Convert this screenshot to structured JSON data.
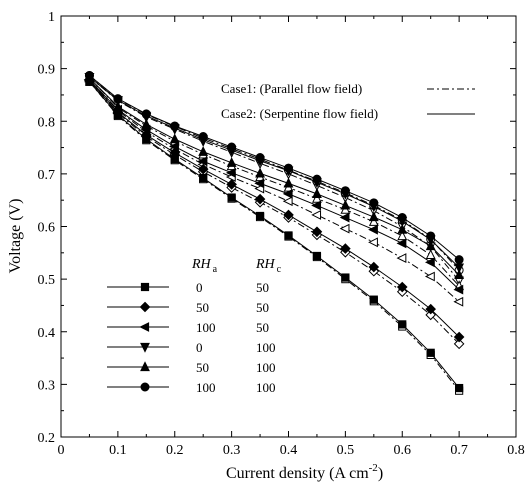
{
  "chart_data": {
    "type": "line",
    "title": "",
    "xlabel": "Current density (A cm",
    "xlabel_sup": "-2",
    "xlabel_close": ")",
    "ylabel": "Voltage (V)",
    "xlim": [
      0,
      0.8
    ],
    "ylim": [
      0.2,
      1.0
    ],
    "xticks": [
      "0",
      "0.1",
      "0.2",
      "0.3",
      "0.4",
      "0.5",
      "0.6",
      "0.7",
      "0.8"
    ],
    "yticks": [
      "0.2",
      "0.3",
      "0.4",
      "0.5",
      "0.6",
      "0.7",
      "0.8",
      "0.9",
      "1"
    ],
    "grid": false,
    "case_legend": [
      {
        "label": "Case1: (Parallel flow field)",
        "style": "dashdot"
      },
      {
        "label": "Case2: (Serpentine flow field)",
        "style": "solid"
      }
    ],
    "rh_header": {
      "a": "RH",
      "a_sub": "a",
      "c": "RH",
      "c_sub": "c"
    },
    "rh_legend": [
      {
        "marker": "square",
        "rha": "0",
        "rhc": "50"
      },
      {
        "marker": "diamond",
        "rha": "50",
        "rhc": "50"
      },
      {
        "marker": "tri-left",
        "rha": "100",
        "rhc": "50"
      },
      {
        "marker": "tri-down",
        "rha": "0",
        "rhc": "100"
      },
      {
        "marker": "tri-up",
        "rha": "50",
        "rhc": "100"
      },
      {
        "marker": "circle",
        "rha": "100",
        "rhc": "100"
      }
    ],
    "x": [
      0.05,
      0.1,
      0.15,
      0.2,
      0.25,
      0.3,
      0.35,
      0.4,
      0.45,
      0.5,
      0.55,
      0.6,
      0.65,
      0.7
    ],
    "series": [
      {
        "marker": "square",
        "case": 2,
        "values": [
          0.875,
          0.812,
          0.766,
          0.728,
          0.692,
          0.655,
          0.62,
          0.583,
          0.544,
          0.503,
          0.461,
          0.414,
          0.36,
          0.293
        ]
      },
      {
        "marker": "square",
        "case": 1,
        "values": [
          0.875,
          0.81,
          0.764,
          0.726,
          0.69,
          0.653,
          0.618,
          0.581,
          0.542,
          0.5,
          0.458,
          0.41,
          0.356,
          0.288
        ]
      },
      {
        "marker": "diamond",
        "case": 2,
        "values": [
          0.877,
          0.817,
          0.774,
          0.74,
          0.709,
          0.68,
          0.652,
          0.622,
          0.59,
          0.558,
          0.523,
          0.485,
          0.443,
          0.39
        ]
      },
      {
        "marker": "diamond",
        "case": 1,
        "values": [
          0.877,
          0.815,
          0.771,
          0.736,
          0.704,
          0.674,
          0.646,
          0.617,
          0.584,
          0.551,
          0.515,
          0.476,
          0.432,
          0.377
        ]
      },
      {
        "marker": "tri-left",
        "case": 2,
        "values": [
          0.879,
          0.822,
          0.784,
          0.752,
          0.724,
          0.702,
          0.682,
          0.662,
          0.64,
          0.617,
          0.594,
          0.568,
          0.532,
          0.48
        ]
      },
      {
        "marker": "tri-left",
        "case": 1,
        "values": [
          0.879,
          0.82,
          0.78,
          0.747,
          0.718,
          0.694,
          0.672,
          0.648,
          0.622,
          0.596,
          0.57,
          0.54,
          0.505,
          0.457
        ]
      },
      {
        "marker": "tri-down",
        "case": 2,
        "values": [
          0.884,
          0.84,
          0.81,
          0.787,
          0.765,
          0.745,
          0.725,
          0.706,
          0.684,
          0.662,
          0.638,
          0.61,
          0.575,
          0.522
        ]
      },
      {
        "marker": "tri-down",
        "case": 1,
        "values": [
          0.884,
          0.839,
          0.808,
          0.785,
          0.762,
          0.741,
          0.72,
          0.7,
          0.678,
          0.655,
          0.63,
          0.6,
          0.562,
          0.497
        ]
      },
      {
        "marker": "tri-up",
        "case": 2,
        "values": [
          0.882,
          0.828,
          0.794,
          0.766,
          0.742,
          0.721,
          0.701,
          0.682,
          0.662,
          0.64,
          0.618,
          0.594,
          0.563,
          0.508
        ]
      },
      {
        "marker": "tri-up",
        "case": 1,
        "values": [
          0.882,
          0.826,
          0.791,
          0.762,
          0.737,
          0.715,
          0.694,
          0.674,
          0.653,
          0.632,
          0.609,
          0.582,
          0.546,
          0.487
        ]
      },
      {
        "marker": "circle",
        "case": 2,
        "values": [
          0.887,
          0.843,
          0.814,
          0.791,
          0.771,
          0.751,
          0.731,
          0.711,
          0.69,
          0.668,
          0.645,
          0.617,
          0.582,
          0.537
        ]
      },
      {
        "marker": "circle",
        "case": 1,
        "values": [
          0.887,
          0.842,
          0.813,
          0.79,
          0.768,
          0.748,
          0.728,
          0.707,
          0.686,
          0.664,
          0.64,
          0.612,
          0.576,
          0.517
        ]
      }
    ]
  }
}
